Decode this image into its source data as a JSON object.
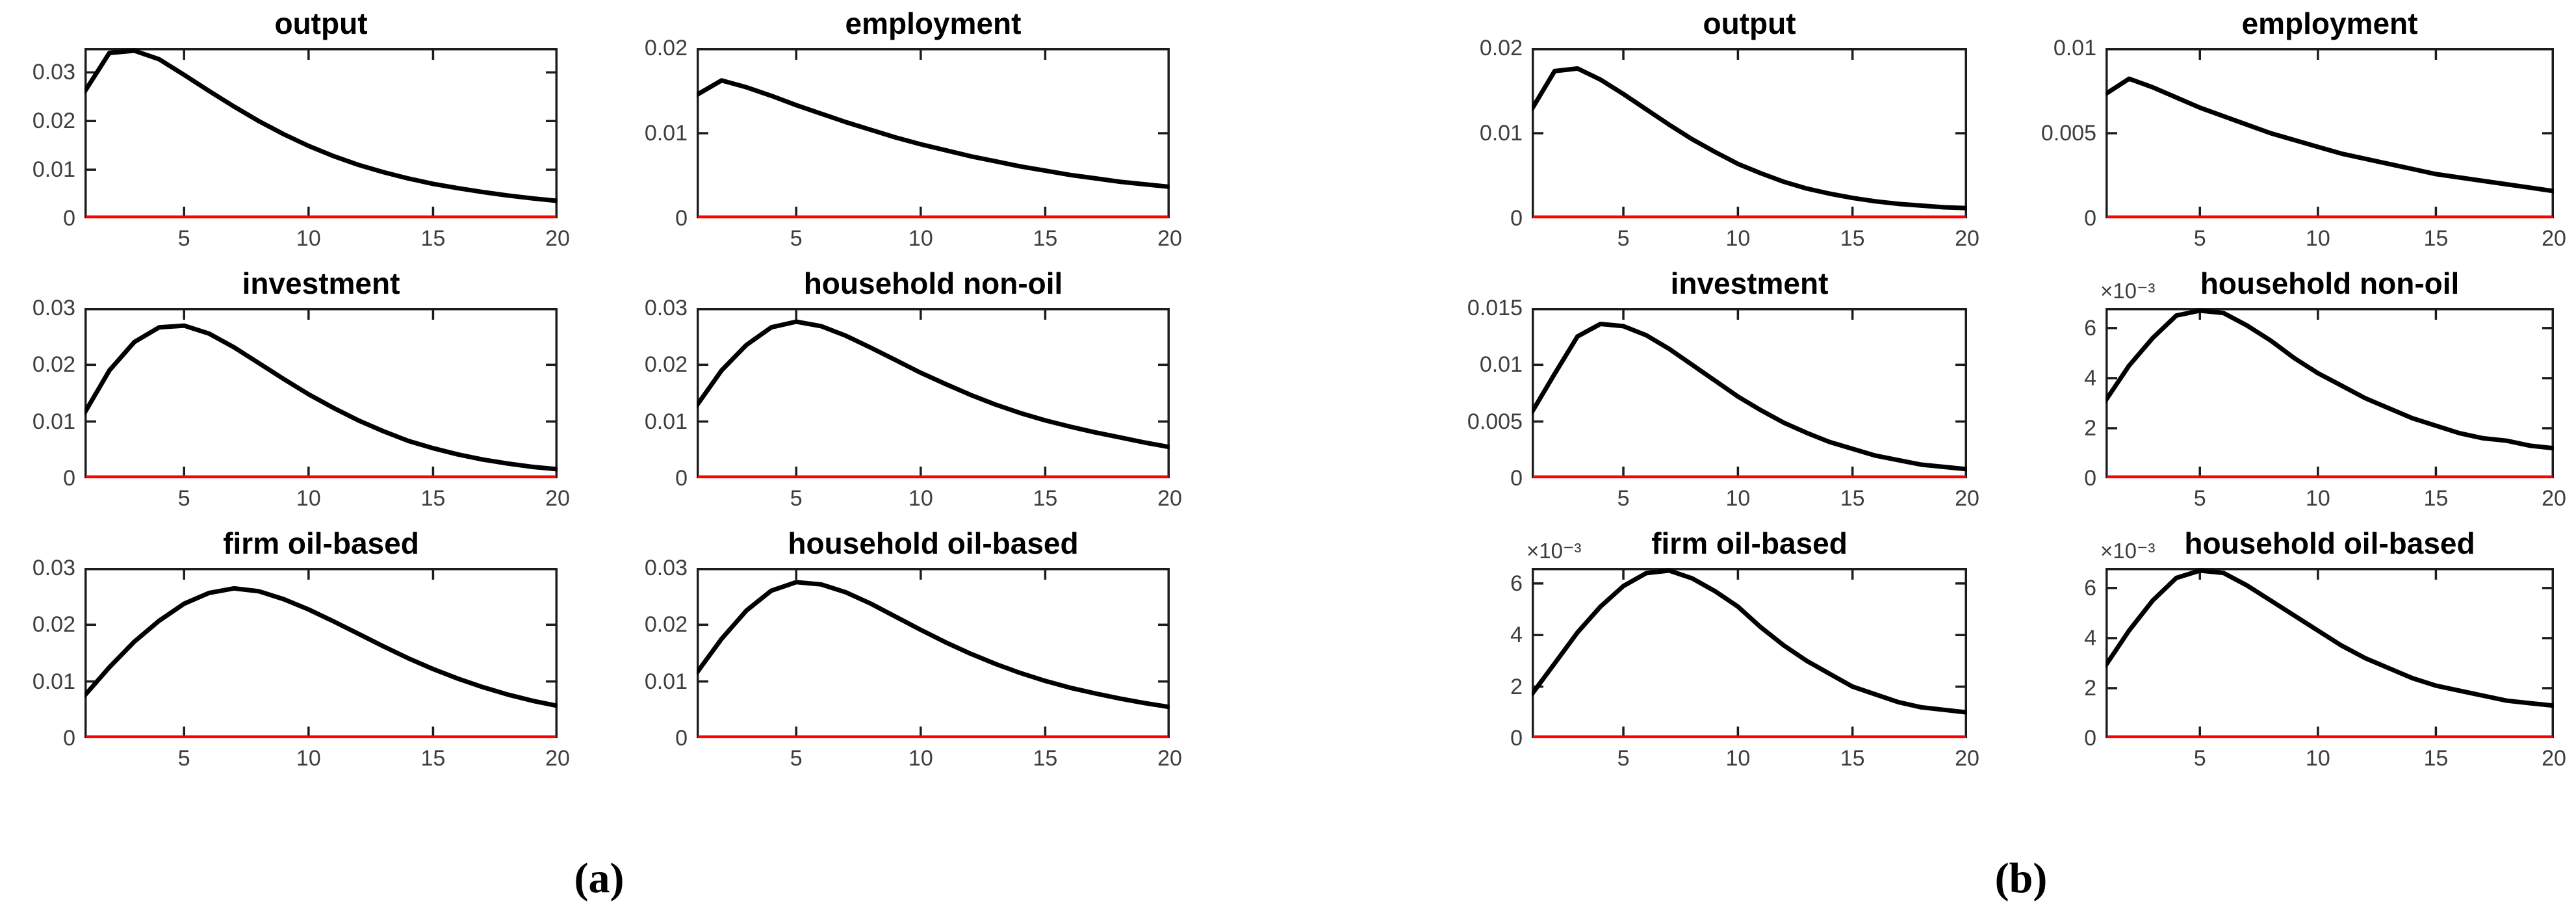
{
  "figure": {
    "captions": {
      "a": "(a)",
      "b": "(b)"
    },
    "colors": {
      "curve": "#000000",
      "zero_line": "#fe0000",
      "axis": "#1c1c1c",
      "tick_label": "#3d3d3d",
      "title": "#000000",
      "background": "#ffffff"
    }
  },
  "chart_data": [
    {
      "panel": "a",
      "type": "line",
      "title": "output",
      "y_multiplier": null,
      "xlim": [
        1,
        20
      ],
      "ylim": [
        0,
        0.035
      ],
      "grid": false,
      "x": [
        1,
        2,
        3,
        4,
        5,
        6,
        7,
        8,
        9,
        10,
        11,
        12,
        13,
        14,
        15,
        16,
        17,
        18,
        19,
        20
      ],
      "values": [
        0.026,
        0.034,
        0.0349,
        0.0327,
        0.0295,
        0.0262,
        0.023,
        0.02,
        0.0173,
        0.0149,
        0.0128,
        0.011,
        0.0095,
        0.0082,
        0.0071,
        0.0062,
        0.0054,
        0.0047,
        0.0041,
        0.0036
      ],
      "yticks": [
        {
          "v": 0,
          "label": "0"
        },
        {
          "v": 0.01,
          "label": "0.01"
        },
        {
          "v": 0.02,
          "label": "0.02"
        },
        {
          "v": 0.03,
          "label": "0.03"
        }
      ],
      "xticks": [
        {
          "v": 5,
          "label": "5"
        },
        {
          "v": 10,
          "label": "10"
        },
        {
          "v": 15,
          "label": "15"
        },
        {
          "v": 20,
          "label": "20"
        }
      ],
      "zero_line": 0
    },
    {
      "panel": "a",
      "type": "line",
      "title": "employment",
      "y_multiplier": null,
      "xlim": [
        1,
        20
      ],
      "ylim": [
        0,
        0.02
      ],
      "grid": false,
      "x": [
        1,
        2,
        3,
        4,
        5,
        6,
        7,
        8,
        9,
        10,
        11,
        12,
        13,
        14,
        15,
        16,
        17,
        18,
        19,
        20
      ],
      "values": [
        0.0145,
        0.0162,
        0.0154,
        0.0144,
        0.0133,
        0.0123,
        0.0113,
        0.0104,
        0.0095,
        0.0087,
        0.008,
        0.0073,
        0.0067,
        0.0061,
        0.0056,
        0.0051,
        0.0047,
        0.0043,
        0.004,
        0.0037
      ],
      "yticks": [
        {
          "v": 0,
          "label": "0"
        },
        {
          "v": 0.01,
          "label": "0.01"
        },
        {
          "v": 0.02,
          "label": "0.02"
        }
      ],
      "xticks": [
        {
          "v": 5,
          "label": "5"
        },
        {
          "v": 10,
          "label": "10"
        },
        {
          "v": 15,
          "label": "15"
        },
        {
          "v": 20,
          "label": "20"
        }
      ],
      "zero_line": 0
    },
    {
      "panel": "a",
      "type": "line",
      "title": "investment",
      "y_multiplier": null,
      "xlim": [
        1,
        20
      ],
      "ylim": [
        0,
        0.03
      ],
      "grid": false,
      "x": [
        1,
        2,
        3,
        4,
        5,
        6,
        7,
        8,
        9,
        10,
        11,
        12,
        13,
        14,
        15,
        16,
        17,
        18,
        19,
        20
      ],
      "values": [
        0.0115,
        0.019,
        0.024,
        0.0266,
        0.0269,
        0.0255,
        0.0231,
        0.0203,
        0.0175,
        0.0148,
        0.0124,
        0.0102,
        0.0083,
        0.0066,
        0.0053,
        0.0042,
        0.0033,
        0.0026,
        0.002,
        0.0016
      ],
      "yticks": [
        {
          "v": 0,
          "label": "0"
        },
        {
          "v": 0.01,
          "label": "0.01"
        },
        {
          "v": 0.02,
          "label": "0.02"
        },
        {
          "v": 0.03,
          "label": "0.03"
        }
      ],
      "xticks": [
        {
          "v": 5,
          "label": "5"
        },
        {
          "v": 10,
          "label": "10"
        },
        {
          "v": 15,
          "label": "15"
        },
        {
          "v": 20,
          "label": "20"
        }
      ],
      "zero_line": 0
    },
    {
      "panel": "a",
      "type": "line",
      "title": "household non-oil",
      "y_multiplier": null,
      "xlim": [
        1,
        20
      ],
      "ylim": [
        0,
        0.03
      ],
      "grid": false,
      "x": [
        1,
        2,
        3,
        4,
        5,
        6,
        7,
        8,
        9,
        10,
        11,
        12,
        13,
        14,
        15,
        16,
        17,
        18,
        19,
        20
      ],
      "values": [
        0.0128,
        0.019,
        0.0235,
        0.0266,
        0.0276,
        0.0268,
        0.0251,
        0.023,
        0.0208,
        0.0186,
        0.0166,
        0.0147,
        0.013,
        0.0115,
        0.0102,
        0.0091,
        0.0081,
        0.0072,
        0.0063,
        0.0055
      ],
      "yticks": [
        {
          "v": 0,
          "label": "0"
        },
        {
          "v": 0.01,
          "label": "0.01"
        },
        {
          "v": 0.02,
          "label": "0.02"
        },
        {
          "v": 0.03,
          "label": "0.03"
        }
      ],
      "xticks": [
        {
          "v": 5,
          "label": "5"
        },
        {
          "v": 10,
          "label": "10"
        },
        {
          "v": 15,
          "label": "15"
        },
        {
          "v": 20,
          "label": "20"
        }
      ],
      "zero_line": 0
    },
    {
      "panel": "a",
      "type": "line",
      "title": "firm oil-based",
      "y_multiplier": null,
      "xlim": [
        1,
        20
      ],
      "ylim": [
        0,
        0.03
      ],
      "grid": false,
      "x": [
        1,
        2,
        3,
        4,
        5,
        6,
        7,
        8,
        9,
        10,
        11,
        12,
        13,
        14,
        15,
        16,
        17,
        18,
        19,
        20
      ],
      "values": [
        0.0075,
        0.0125,
        0.017,
        0.0207,
        0.0237,
        0.0256,
        0.0264,
        0.0259,
        0.0245,
        0.0227,
        0.0206,
        0.0184,
        0.0162,
        0.0141,
        0.0122,
        0.0105,
        0.009,
        0.0077,
        0.0066,
        0.0057
      ],
      "yticks": [
        {
          "v": 0,
          "label": "0"
        },
        {
          "v": 0.01,
          "label": "0.01"
        },
        {
          "v": 0.02,
          "label": "0.02"
        },
        {
          "v": 0.03,
          "label": "0.03"
        }
      ],
      "xticks": [
        {
          "v": 5,
          "label": "5"
        },
        {
          "v": 10,
          "label": "10"
        },
        {
          "v": 15,
          "label": "15"
        },
        {
          "v": 20,
          "label": "20"
        }
      ],
      "zero_line": 0
    },
    {
      "panel": "a",
      "type": "line",
      "title": "household oil-based",
      "y_multiplier": null,
      "xlim": [
        1,
        20
      ],
      "ylim": [
        0,
        0.03
      ],
      "grid": false,
      "x": [
        1,
        2,
        3,
        4,
        5,
        6,
        7,
        8,
        9,
        10,
        11,
        12,
        13,
        14,
        15,
        16,
        17,
        18,
        19,
        20
      ],
      "values": [
        0.0115,
        0.0175,
        0.0225,
        0.026,
        0.0275,
        0.0271,
        0.0257,
        0.0237,
        0.0214,
        0.0191,
        0.0169,
        0.0149,
        0.0131,
        0.0115,
        0.0101,
        0.0089,
        0.0079,
        0.007,
        0.0062,
        0.0055
      ],
      "yticks": [
        {
          "v": 0,
          "label": "0"
        },
        {
          "v": 0.01,
          "label": "0.01"
        },
        {
          "v": 0.02,
          "label": "0.02"
        },
        {
          "v": 0.03,
          "label": "0.03"
        }
      ],
      "xticks": [
        {
          "v": 5,
          "label": "5"
        },
        {
          "v": 10,
          "label": "10"
        },
        {
          "v": 15,
          "label": "15"
        },
        {
          "v": 20,
          "label": "20"
        }
      ],
      "zero_line": 0
    },
    {
      "panel": "b",
      "type": "line",
      "title": "output",
      "y_multiplier": null,
      "xlim": [
        1,
        20
      ],
      "ylim": [
        0,
        0.02
      ],
      "grid": false,
      "x": [
        1,
        2,
        3,
        4,
        5,
        6,
        7,
        8,
        9,
        10,
        11,
        12,
        13,
        14,
        15,
        16,
        17,
        18,
        19,
        20
      ],
      "values": [
        0.0128,
        0.0173,
        0.0176,
        0.0163,
        0.0146,
        0.0128,
        0.011,
        0.0093,
        0.0078,
        0.0064,
        0.0053,
        0.0043,
        0.0035,
        0.0029,
        0.0024,
        0.002,
        0.0017,
        0.0015,
        0.0013,
        0.0012
      ],
      "yticks": [
        {
          "v": 0,
          "label": "0"
        },
        {
          "v": 0.01,
          "label": "0.01"
        },
        {
          "v": 0.02,
          "label": "0.02"
        }
      ],
      "xticks": [
        {
          "v": 5,
          "label": "5"
        },
        {
          "v": 10,
          "label": "10"
        },
        {
          "v": 15,
          "label": "15"
        },
        {
          "v": 20,
          "label": "20"
        }
      ],
      "zero_line": 0
    },
    {
      "panel": "b",
      "type": "line",
      "title": "employment",
      "y_multiplier": null,
      "xlim": [
        1,
        20
      ],
      "ylim": [
        0,
        0.01
      ],
      "grid": false,
      "x": [
        1,
        2,
        3,
        4,
        5,
        6,
        7,
        8,
        9,
        10,
        11,
        12,
        13,
        14,
        15,
        16,
        17,
        18,
        19,
        20
      ],
      "values": [
        0.0073,
        0.0082,
        0.0077,
        0.0071,
        0.0065,
        0.006,
        0.0055,
        0.005,
        0.0046,
        0.0042,
        0.0038,
        0.0035,
        0.0032,
        0.0029,
        0.0026,
        0.0024,
        0.0022,
        0.002,
        0.0018,
        0.0016
      ],
      "yticks": [
        {
          "v": 0,
          "label": "0"
        },
        {
          "v": 0.005,
          "label": "0.005"
        },
        {
          "v": 0.01,
          "label": "0.01"
        }
      ],
      "xticks": [
        {
          "v": 5,
          "label": "5"
        },
        {
          "v": 10,
          "label": "10"
        },
        {
          "v": 15,
          "label": "15"
        },
        {
          "v": 20,
          "label": "20"
        }
      ],
      "zero_line": 0
    },
    {
      "panel": "b",
      "type": "line",
      "title": "investment",
      "y_multiplier": null,
      "xlim": [
        1,
        20
      ],
      "ylim": [
        0,
        0.015
      ],
      "grid": false,
      "x": [
        1,
        2,
        3,
        4,
        5,
        6,
        7,
        8,
        9,
        10,
        11,
        12,
        13,
        14,
        15,
        16,
        17,
        18,
        19,
        20
      ],
      "values": [
        0.0058,
        0.0092,
        0.0125,
        0.0136,
        0.0134,
        0.0126,
        0.0114,
        0.01,
        0.0086,
        0.0072,
        0.006,
        0.0049,
        0.004,
        0.0032,
        0.0026,
        0.002,
        0.0016,
        0.0012,
        0.001,
        0.0008
      ],
      "yticks": [
        {
          "v": 0,
          "label": "0"
        },
        {
          "v": 0.005,
          "label": "0.005"
        },
        {
          "v": 0.01,
          "label": "0.01"
        },
        {
          "v": 0.015,
          "label": "0.015"
        }
      ],
      "xticks": [
        {
          "v": 5,
          "label": "5"
        },
        {
          "v": 10,
          "label": "10"
        },
        {
          "v": 15,
          "label": "15"
        },
        {
          "v": 20,
          "label": "20"
        }
      ],
      "zero_line": 0
    },
    {
      "panel": "b",
      "type": "line",
      "title": "household non-oil",
      "y_multiplier": "×10⁻³",
      "xlim": [
        1,
        20
      ],
      "ylim": [
        0,
        0.0068
      ],
      "grid": false,
      "x": [
        1,
        2,
        3,
        4,
        5,
        6,
        7,
        8,
        9,
        10,
        11,
        12,
        13,
        14,
        15,
        16,
        17,
        18,
        19,
        20
      ],
      "values": [
        0.0031,
        0.0045,
        0.0056,
        0.0065,
        0.0069,
        0.0066,
        0.0061,
        0.0055,
        0.0048,
        0.0042,
        0.0037,
        0.0032,
        0.0028,
        0.0024,
        0.0021,
        0.0018,
        0.0016,
        0.0015,
        0.0013,
        0.0012
      ],
      "yticks": [
        {
          "v": 0,
          "label": "0"
        },
        {
          "v": 0.002,
          "label": "2"
        },
        {
          "v": 0.004,
          "label": "4"
        },
        {
          "v": 0.006,
          "label": "6"
        }
      ],
      "xticks": [
        {
          "v": 5,
          "label": "5"
        },
        {
          "v": 10,
          "label": "10"
        },
        {
          "v": 15,
          "label": "15"
        },
        {
          "v": 20,
          "label": "20"
        }
      ],
      "zero_line": 0
    },
    {
      "panel": "b",
      "type": "line",
      "title": "firm oil-based",
      "y_multiplier": "×10⁻³",
      "xlim": [
        1,
        20
      ],
      "ylim": [
        0,
        0.0066
      ],
      "grid": false,
      "x": [
        1,
        2,
        3,
        4,
        5,
        6,
        7,
        8,
        9,
        10,
        11,
        12,
        13,
        14,
        15,
        16,
        17,
        18,
        19,
        20
      ],
      "values": [
        0.0017,
        0.0029,
        0.0041,
        0.0051,
        0.0059,
        0.0064,
        0.0065,
        0.0062,
        0.0057,
        0.0051,
        0.0043,
        0.0036,
        0.003,
        0.0025,
        0.002,
        0.0017,
        0.0014,
        0.0012,
        0.0011,
        0.001
      ],
      "yticks": [
        {
          "v": 0,
          "label": "0"
        },
        {
          "v": 0.002,
          "label": "2"
        },
        {
          "v": 0.004,
          "label": "4"
        },
        {
          "v": 0.006,
          "label": "6"
        }
      ],
      "xticks": [
        {
          "v": 5,
          "label": "5"
        },
        {
          "v": 10,
          "label": "10"
        },
        {
          "v": 15,
          "label": "15"
        },
        {
          "v": 20,
          "label": "20"
        }
      ],
      "zero_line": 0
    },
    {
      "panel": "b",
      "type": "line",
      "title": "household oil-based",
      "y_multiplier": "×10⁻³",
      "xlim": [
        1,
        20
      ],
      "ylim": [
        0,
        0.0068
      ],
      "grid": false,
      "x": [
        1,
        2,
        3,
        4,
        5,
        6,
        7,
        8,
        9,
        10,
        11,
        12,
        13,
        14,
        15,
        16,
        17,
        18,
        19,
        20
      ],
      "values": [
        0.0029,
        0.0043,
        0.0055,
        0.0064,
        0.0068,
        0.0066,
        0.0061,
        0.0055,
        0.0049,
        0.0043,
        0.0037,
        0.0032,
        0.0028,
        0.0024,
        0.0021,
        0.0019,
        0.0017,
        0.0015,
        0.0014,
        0.0013
      ],
      "yticks": [
        {
          "v": 0,
          "label": "0"
        },
        {
          "v": 0.002,
          "label": "2"
        },
        {
          "v": 0.004,
          "label": "4"
        },
        {
          "v": 0.006,
          "label": "6"
        }
      ],
      "xticks": [
        {
          "v": 5,
          "label": "5"
        },
        {
          "v": 10,
          "label": "10"
        },
        {
          "v": 15,
          "label": "15"
        },
        {
          "v": 20,
          "label": "20"
        }
      ],
      "zero_line": 0
    }
  ]
}
